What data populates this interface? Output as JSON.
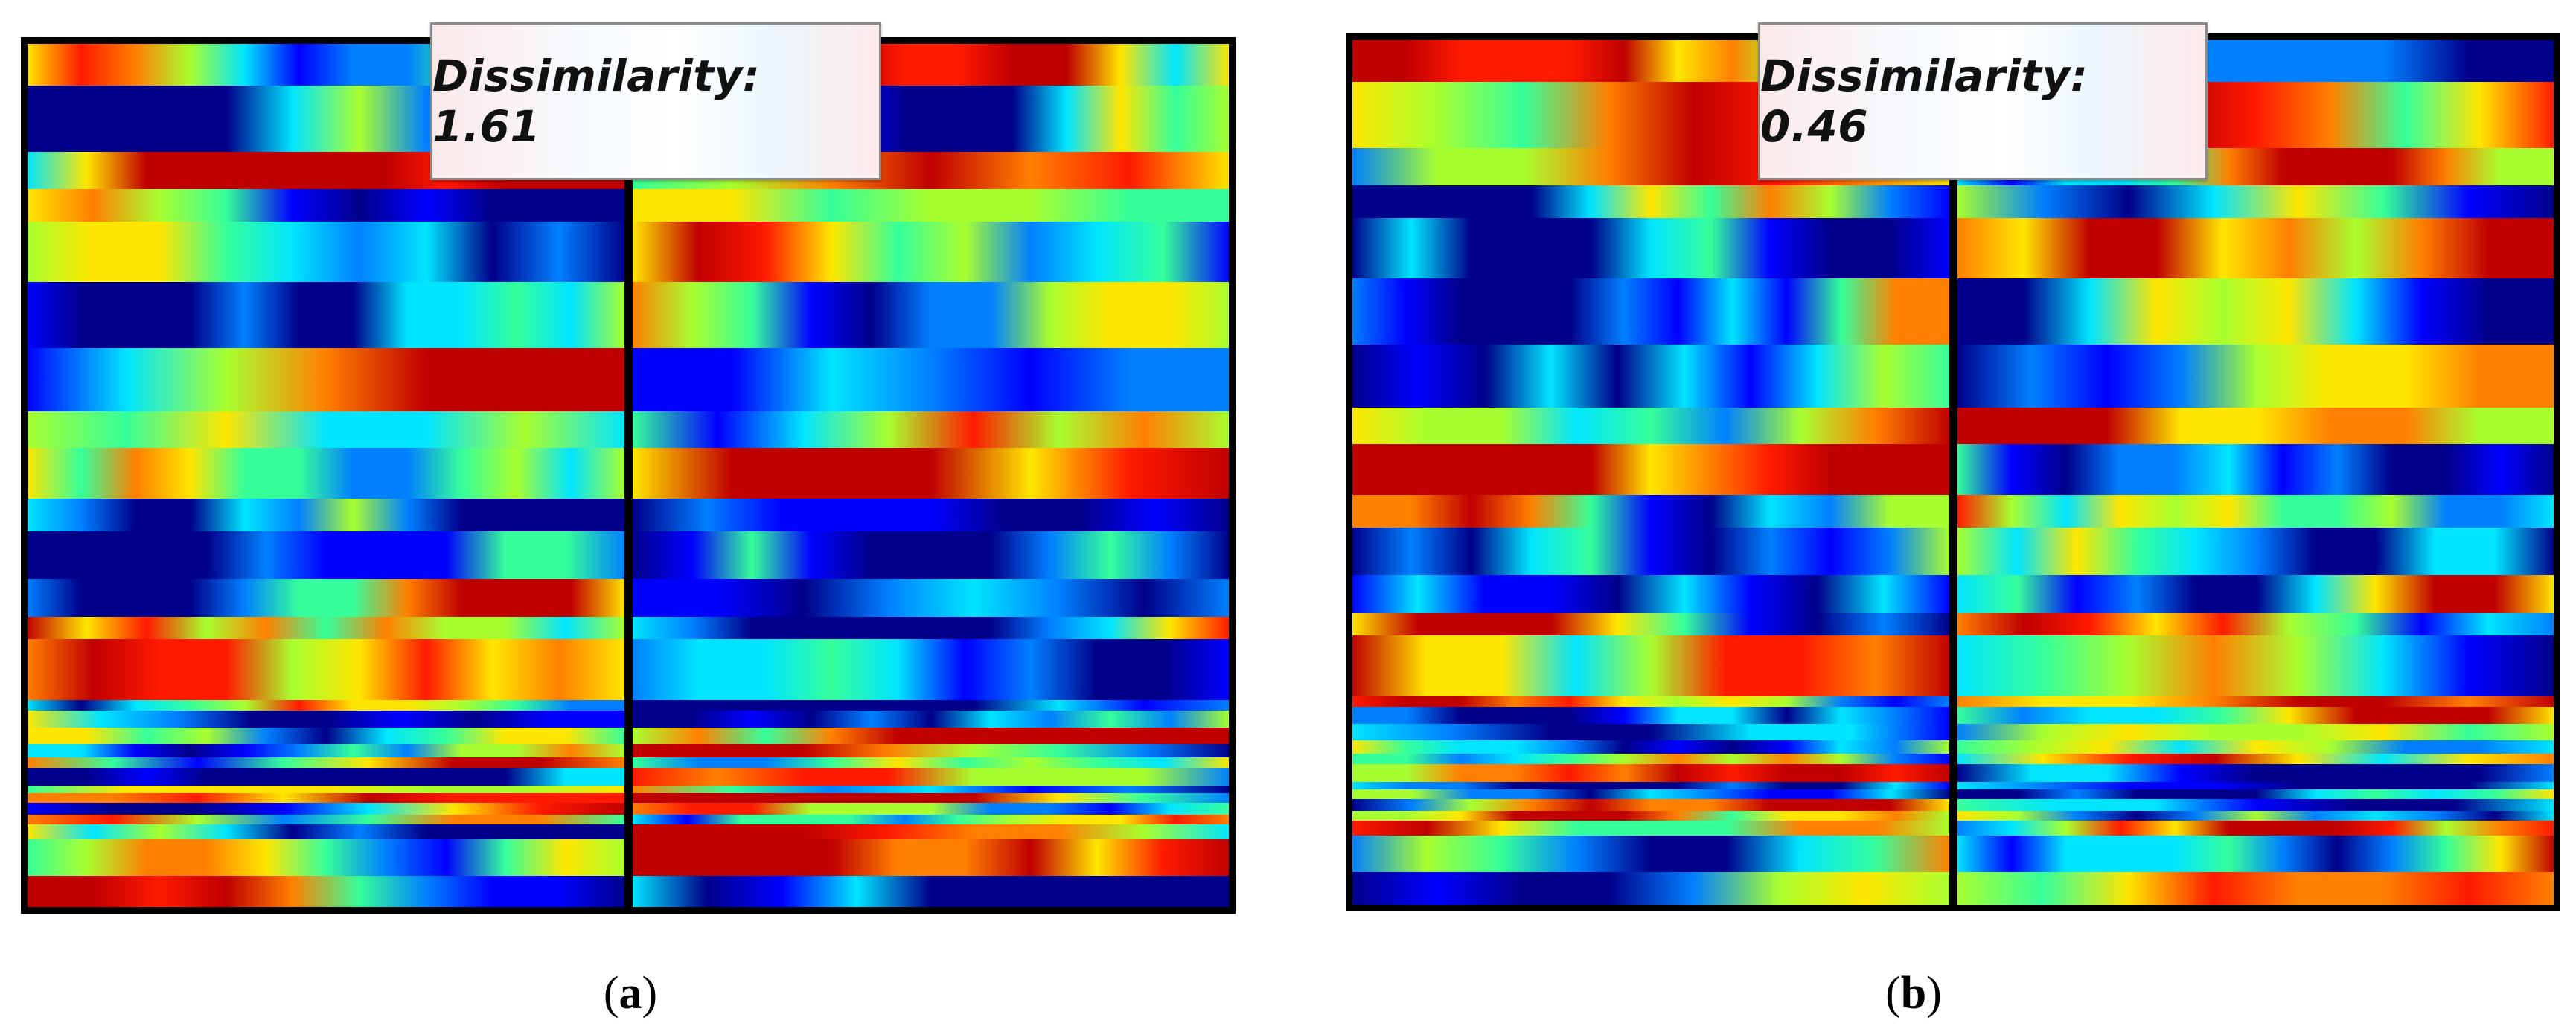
{
  "panels": [
    {
      "id": "a",
      "label": "a",
      "dissimilarity_text": "Dissimilarity: 1.61",
      "seed": 7
    },
    {
      "id": "b",
      "label": "b",
      "dissimilarity_text": "Dissimilarity: 0.46",
      "seed": 7
    }
  ],
  "colors": {
    "colormap": [
      "#00008b",
      "#0000ff",
      "#0080ff",
      "#00e5ff",
      "#35ff9a",
      "#a8ff2f",
      "#ffe600",
      "#ff8000",
      "#ff1a00",
      "#c00000"
    ],
    "frame": "#000000",
    "divider": "#000000"
  }
}
